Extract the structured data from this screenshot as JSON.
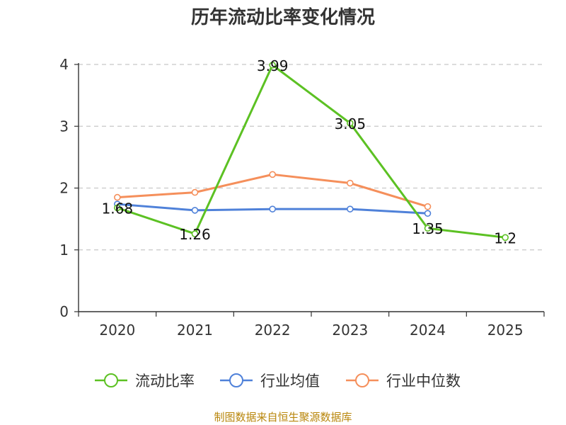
{
  "source_label": "制图数据来自恒生聚源数据库",
  "chart_data": {
    "type": "line",
    "title": "历年流动比率变化情况",
    "xlabel": "",
    "ylabel": "",
    "categories": [
      "2020",
      "2021",
      "2022",
      "2023",
      "2024",
      "2025"
    ],
    "ylim": [
      0,
      4
    ],
    "yticks": [
      0,
      1,
      2,
      3,
      4
    ],
    "grid": true,
    "legend_position": "bottom",
    "series": [
      {
        "name": "流动比率",
        "color": "#5cc123",
        "values": [
          1.68,
          1.26,
          3.99,
          3.05,
          1.35,
          1.2
        ],
        "labels": [
          "1.68",
          "1.26",
          "3.99",
          "3.05",
          "1.35",
          "1.2"
        ]
      },
      {
        "name": "行业均值",
        "color": "#4f81d9",
        "values": [
          1.74,
          1.64,
          1.66,
          1.66,
          1.59,
          null
        ]
      },
      {
        "name": "行业中位数",
        "color": "#f58f5b",
        "values": [
          1.85,
          1.93,
          2.22,
          2.08,
          1.7,
          null
        ]
      }
    ]
  }
}
